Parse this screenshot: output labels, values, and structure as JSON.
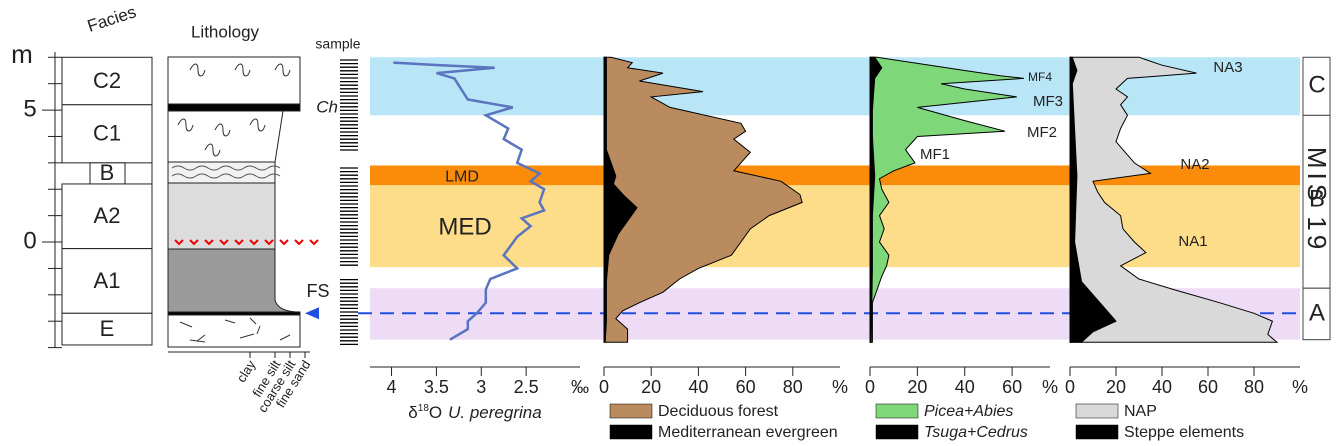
{
  "chart_data": [
    {
      "type": "facies",
      "title": "Facies",
      "y_label": "m",
      "ylim": [
        -4,
        7.2
      ],
      "yticks": [
        0,
        5
      ],
      "minor_yticks": [
        -4,
        -3,
        -2,
        -1,
        1,
        2,
        3,
        4,
        6,
        7
      ],
      "units": [
        {
          "label": "C2",
          "top": 7.0,
          "bottom": 5.2
        },
        {
          "label": "C1",
          "top": 5.2,
          "bottom": 3.0
        },
        {
          "label": "B",
          "top": 3.0,
          "bottom": 2.2
        },
        {
          "label": "A2",
          "top": 2.2,
          "bottom": -0.25
        },
        {
          "label": "A1",
          "top": -0.25,
          "bottom": -2.7
        },
        {
          "label": "E",
          "top": -2.7,
          "bottom": -3.9
        }
      ]
    },
    {
      "type": "lithology",
      "title": "Lithology",
      "grain_sizes": [
        "clay",
        "fine silt",
        "coarse silt",
        "fine sand"
      ],
      "labels": [
        "Ch",
        "FS"
      ],
      "sample_label": "sample"
    },
    {
      "type": "line",
      "xlim": [
        4.24,
        1.9
      ],
      "xticks": [
        4,
        3.5,
        3,
        2.5
      ],
      "x_unit": "‰",
      "x_label": {
        "symbol": "δ",
        "sup": "18",
        "element": "O",
        "species": "U. peregrina"
      },
      "series": [
        {
          "color": "#5b74c0",
          "depth": [
            6.8,
            6.7,
            6.6,
            6.4,
            6.2,
            5.4,
            5.1,
            4.8,
            4.3,
            3.9,
            3.5,
            3.0,
            2.6,
            2.3,
            2.0,
            1.5,
            1.2,
            0.9,
            0.6,
            0.2,
            -0.5,
            -1.0,
            -1.4,
            -1.8,
            -2.3,
            -2.7,
            -3.0,
            -3.3,
            -3.7
          ],
          "values": [
            3.98,
            3.45,
            2.85,
            3.5,
            3.3,
            3.15,
            2.65,
            2.95,
            2.7,
            2.75,
            2.55,
            2.6,
            2.35,
            2.45,
            2.3,
            2.35,
            2.3,
            2.55,
            2.45,
            2.6,
            2.75,
            2.6,
            2.9,
            2.95,
            2.95,
            3.05,
            3.15,
            3.15,
            3.35
          ]
        }
      ]
    },
    {
      "type": "area",
      "xlim": [
        0,
        100
      ],
      "xticks": [
        0,
        20,
        40,
        60,
        80
      ],
      "x_unit": "%",
      "series": [
        {
          "name": "Deciduous forest",
          "color": "#b98b5e",
          "depth": [
            7.0,
            6.8,
            6.6,
            6.4,
            6.1,
            5.7,
            5.5,
            5.1,
            4.5,
            4.2,
            3.9,
            3.4,
            2.7,
            2.3,
            1.8,
            1.5,
            1.0,
            0.5,
            0.0,
            -0.5,
            -1.0,
            -1.4,
            -1.9,
            -2.3,
            -2.6,
            -2.9,
            -3.3,
            -3.8
          ],
          "values": [
            3,
            12,
            10,
            25,
            15,
            42,
            20,
            28,
            58,
            60,
            55,
            62,
            55,
            75,
            83,
            84,
            70,
            62,
            58,
            54,
            40,
            32,
            25,
            15,
            8,
            5,
            10,
            10
          ]
        },
        {
          "name": "Mediterranean evergreen",
          "color": "#000000",
          "depth": [
            7.0,
            5.0,
            3.5,
            2.5,
            2.2,
            1.8,
            1.3,
            0.8,
            0.3,
            -0.5,
            -1.5,
            -3.0,
            -3.8
          ],
          "values": [
            1,
            1,
            1,
            5,
            4,
            8,
            14,
            10,
            6,
            2,
            1,
            1,
            0.5
          ]
        }
      ]
    },
    {
      "type": "area",
      "xlim": [
        0,
        76
      ],
      "xticks": [
        0,
        20,
        40,
        60
      ],
      "x_unit": "%",
      "annotations": [
        "MF4",
        "MF3",
        "MF2",
        "MF1"
      ],
      "series": [
        {
          "name": "Picea+Abies",
          "color": "#7ed87a",
          "depth": [
            7.0,
            6.8,
            6.5,
            6.3,
            6.2,
            6.0,
            5.8,
            5.5,
            5.1,
            4.6,
            4.2,
            4.0,
            3.5,
            3.0,
            2.7,
            2.4,
            2.0,
            1.5,
            1.0,
            0.5,
            0.0,
            -0.5,
            -0.9,
            -1.3,
            -1.8,
            -2.3,
            -3.8
          ],
          "values": [
            3,
            18,
            40,
            55,
            65,
            30,
            40,
            62,
            20,
            40,
            57,
            20,
            15,
            19,
            10,
            4,
            5,
            8,
            4,
            6,
            4,
            8,
            7,
            5,
            3,
            1,
            1
          ]
        },
        {
          "name": "Tsuga+Cedrus",
          "color": "#000000",
          "depth": [
            7.0,
            6.6,
            6.2,
            5.0,
            4.0,
            2.5,
            1.0,
            -1.0,
            -3.8
          ],
          "values": [
            2,
            5,
            2,
            1,
            1,
            2,
            1,
            1,
            0.5
          ]
        }
      ]
    },
    {
      "type": "area",
      "xlim": [
        0,
        100
      ],
      "xticks": [
        0,
        20,
        40,
        60,
        80
      ],
      "x_unit": "%",
      "annotations": [
        "NA3",
        "NA2",
        "NA1"
      ],
      "series": [
        {
          "name": "NAP",
          "color": "#d9d9d9",
          "depth": [
            7.0,
            6.7,
            6.4,
            6.2,
            5.8,
            5.5,
            5.2,
            4.8,
            4.3,
            3.8,
            3.3,
            3.0,
            2.6,
            2.3,
            1.9,
            1.5,
            1.0,
            0.5,
            0.0,
            -0.4,
            -0.9,
            -1.4,
            -1.8,
            -2.3,
            -2.7,
            -3.0,
            -3.5,
            -3.8
          ],
          "values": [
            30,
            40,
            55,
            25,
            20,
            25,
            22,
            25,
            22,
            20,
            25,
            28,
            35,
            10,
            12,
            15,
            22,
            23,
            28,
            33,
            22,
            30,
            45,
            65,
            80,
            88,
            86,
            90
          ]
        },
        {
          "name": "Steppe elements",
          "color": "#000000",
          "depth": [
            7.0,
            6.5,
            6.0,
            2.5,
            0.0,
            -1.5,
            -2.0,
            -2.5,
            -3.0,
            -3.4,
            -3.8
          ],
          "values": [
            1,
            3,
            1,
            3,
            2,
            5,
            10,
            15,
            20,
            10,
            5
          ]
        }
      ]
    }
  ],
  "zones": {
    "bands": [
      {
        "top": 7.0,
        "bottom": 4.8,
        "color": "#b8e6f7"
      },
      {
        "label": "LMD",
        "top": 2.9,
        "bottom": 2.15,
        "color": "#fb8c0a"
      },
      {
        "label": "MED",
        "top": 2.15,
        "bottom": -0.95,
        "color": "#fddc8a"
      },
      {
        "top": -1.75,
        "bottom": -3.7,
        "color": "#eedcf7"
      }
    ],
    "stages": [
      {
        "label": "C",
        "top": 7.0,
        "bottom": 4.8
      },
      {
        "label": "B",
        "top": 4.8,
        "bottom": -1.75
      },
      {
        "label": "A",
        "top": -1.75,
        "bottom": -3.7
      }
    ],
    "stage_title": "MIS 19",
    "fs_depth": -2.7
  }
}
